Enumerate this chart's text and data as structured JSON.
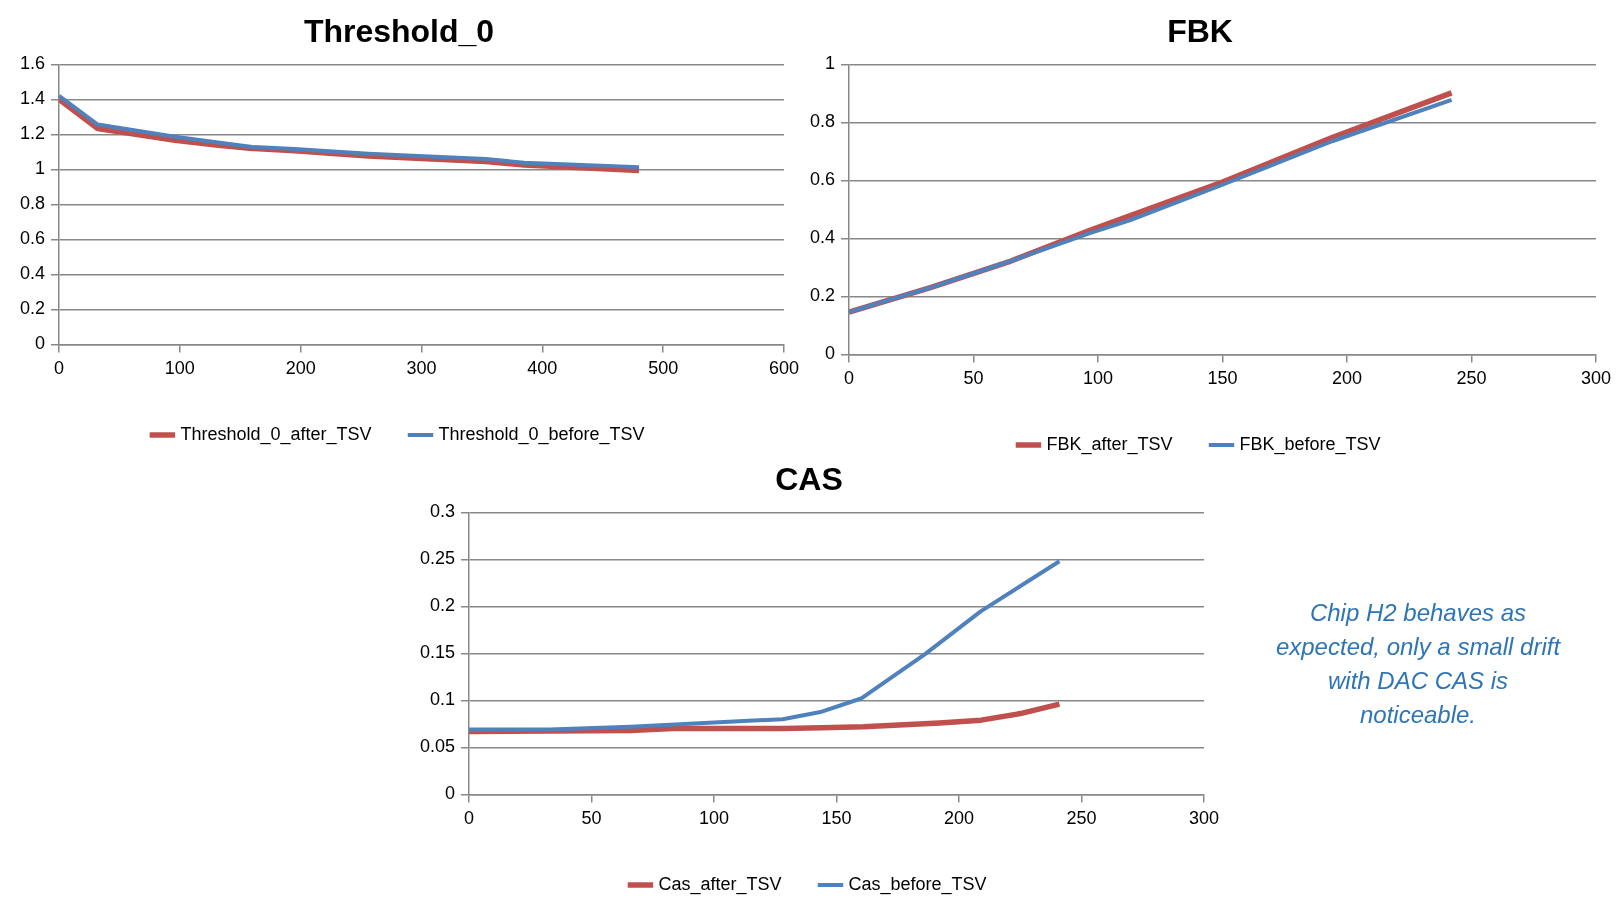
{
  "chart_data": [
    {
      "type": "line",
      "title": "Threshold_0",
      "xlim": [
        0,
        600
      ],
      "xticks": [
        0,
        100,
        200,
        300,
        400,
        500,
        600
      ],
      "ylim": [
        0,
        1.6
      ],
      "yticks": [
        0,
        0.2,
        0.4,
        0.6,
        0.8,
        1,
        1.2,
        1.4,
        1.6
      ],
      "grid": "y",
      "legend": "bottom",
      "marker": "none",
      "series": [
        {
          "name": "Threshold_0_after_TSV",
          "color": "#c0504d",
          "x": [
            0,
            32,
            96,
            130,
            160,
            195,
            256,
            353,
            385,
            480
          ],
          "values": [
            1.4,
            1.234,
            1.166,
            1.14,
            1.12,
            1.106,
            1.076,
            1.045,
            1.025,
            0.993
          ]
        },
        {
          "name": "Threshold_0_before_TSV",
          "color": "#4f81bd",
          "x": [
            0,
            32,
            96,
            130,
            160,
            195,
            256,
            353,
            385,
            480
          ],
          "values": [
            1.42,
            1.256,
            1.186,
            1.155,
            1.128,
            1.117,
            1.09,
            1.06,
            1.038,
            1.013
          ]
        }
      ]
    },
    {
      "type": "line",
      "title": "FBK",
      "xlim": [
        0,
        300
      ],
      "xticks": [
        0,
        50,
        100,
        150,
        200,
        250,
        300
      ],
      "ylim": [
        0,
        1
      ],
      "yticks": [
        0,
        0.2,
        0.4,
        0.6,
        0.8,
        1
      ],
      "grid": "y",
      "legend": "bottom",
      "marker": "none",
      "series": [
        {
          "name": "FBK_after_TSV",
          "color": "#c0504d",
          "x": [
            0,
            33,
            65,
            97,
            113,
            150,
            194,
            242
          ],
          "values": [
            0.146,
            0.231,
            0.322,
            0.429,
            0.479,
            0.594,
            0.748,
            0.902
          ]
        },
        {
          "name": "FBK_before_TSV",
          "color": "#4f81bd",
          "x": [
            0,
            33,
            65,
            97,
            113,
            150,
            194,
            242
          ],
          "values": [
            0.146,
            0.231,
            0.322,
            0.419,
            0.463,
            0.585,
            0.735,
            0.878
          ]
        }
      ]
    },
    {
      "type": "line",
      "title": "CAS",
      "xlim": [
        0,
        300
      ],
      "xticks": [
        0,
        50,
        100,
        150,
        200,
        250,
        300
      ],
      "ylim": [
        0,
        0.3
      ],
      "yticks": [
        0,
        0.05,
        0.1,
        0.15,
        0.2,
        0.25,
        0.3
      ],
      "grid": "y",
      "legend": "bottom",
      "marker": "none",
      "annotations": [
        "Chip H2 behaves as expected, only a small drift with DAC CAS  is noticeable."
      ],
      "series": [
        {
          "name": "Cas_after_TSV",
          "color": "#c0504d",
          "x": [
            0,
            66,
            83,
            128,
            144,
            161,
            192,
            209,
            225,
            241
          ],
          "values": [
            0.067,
            0.068,
            0.07,
            0.07,
            0.071,
            0.072,
            0.076,
            0.079,
            0.086,
            0.096
          ]
        },
        {
          "name": "Cas_before_TSV",
          "color": "#4f81bd",
          "x": [
            0,
            33,
            66,
            112,
            128,
            144,
            160,
            186,
            209,
            241
          ],
          "values": [
            0.069,
            0.069,
            0.072,
            0.078,
            0.08,
            0.088,
            0.102,
            0.149,
            0.195,
            0.248
          ]
        }
      ]
    }
  ]
}
